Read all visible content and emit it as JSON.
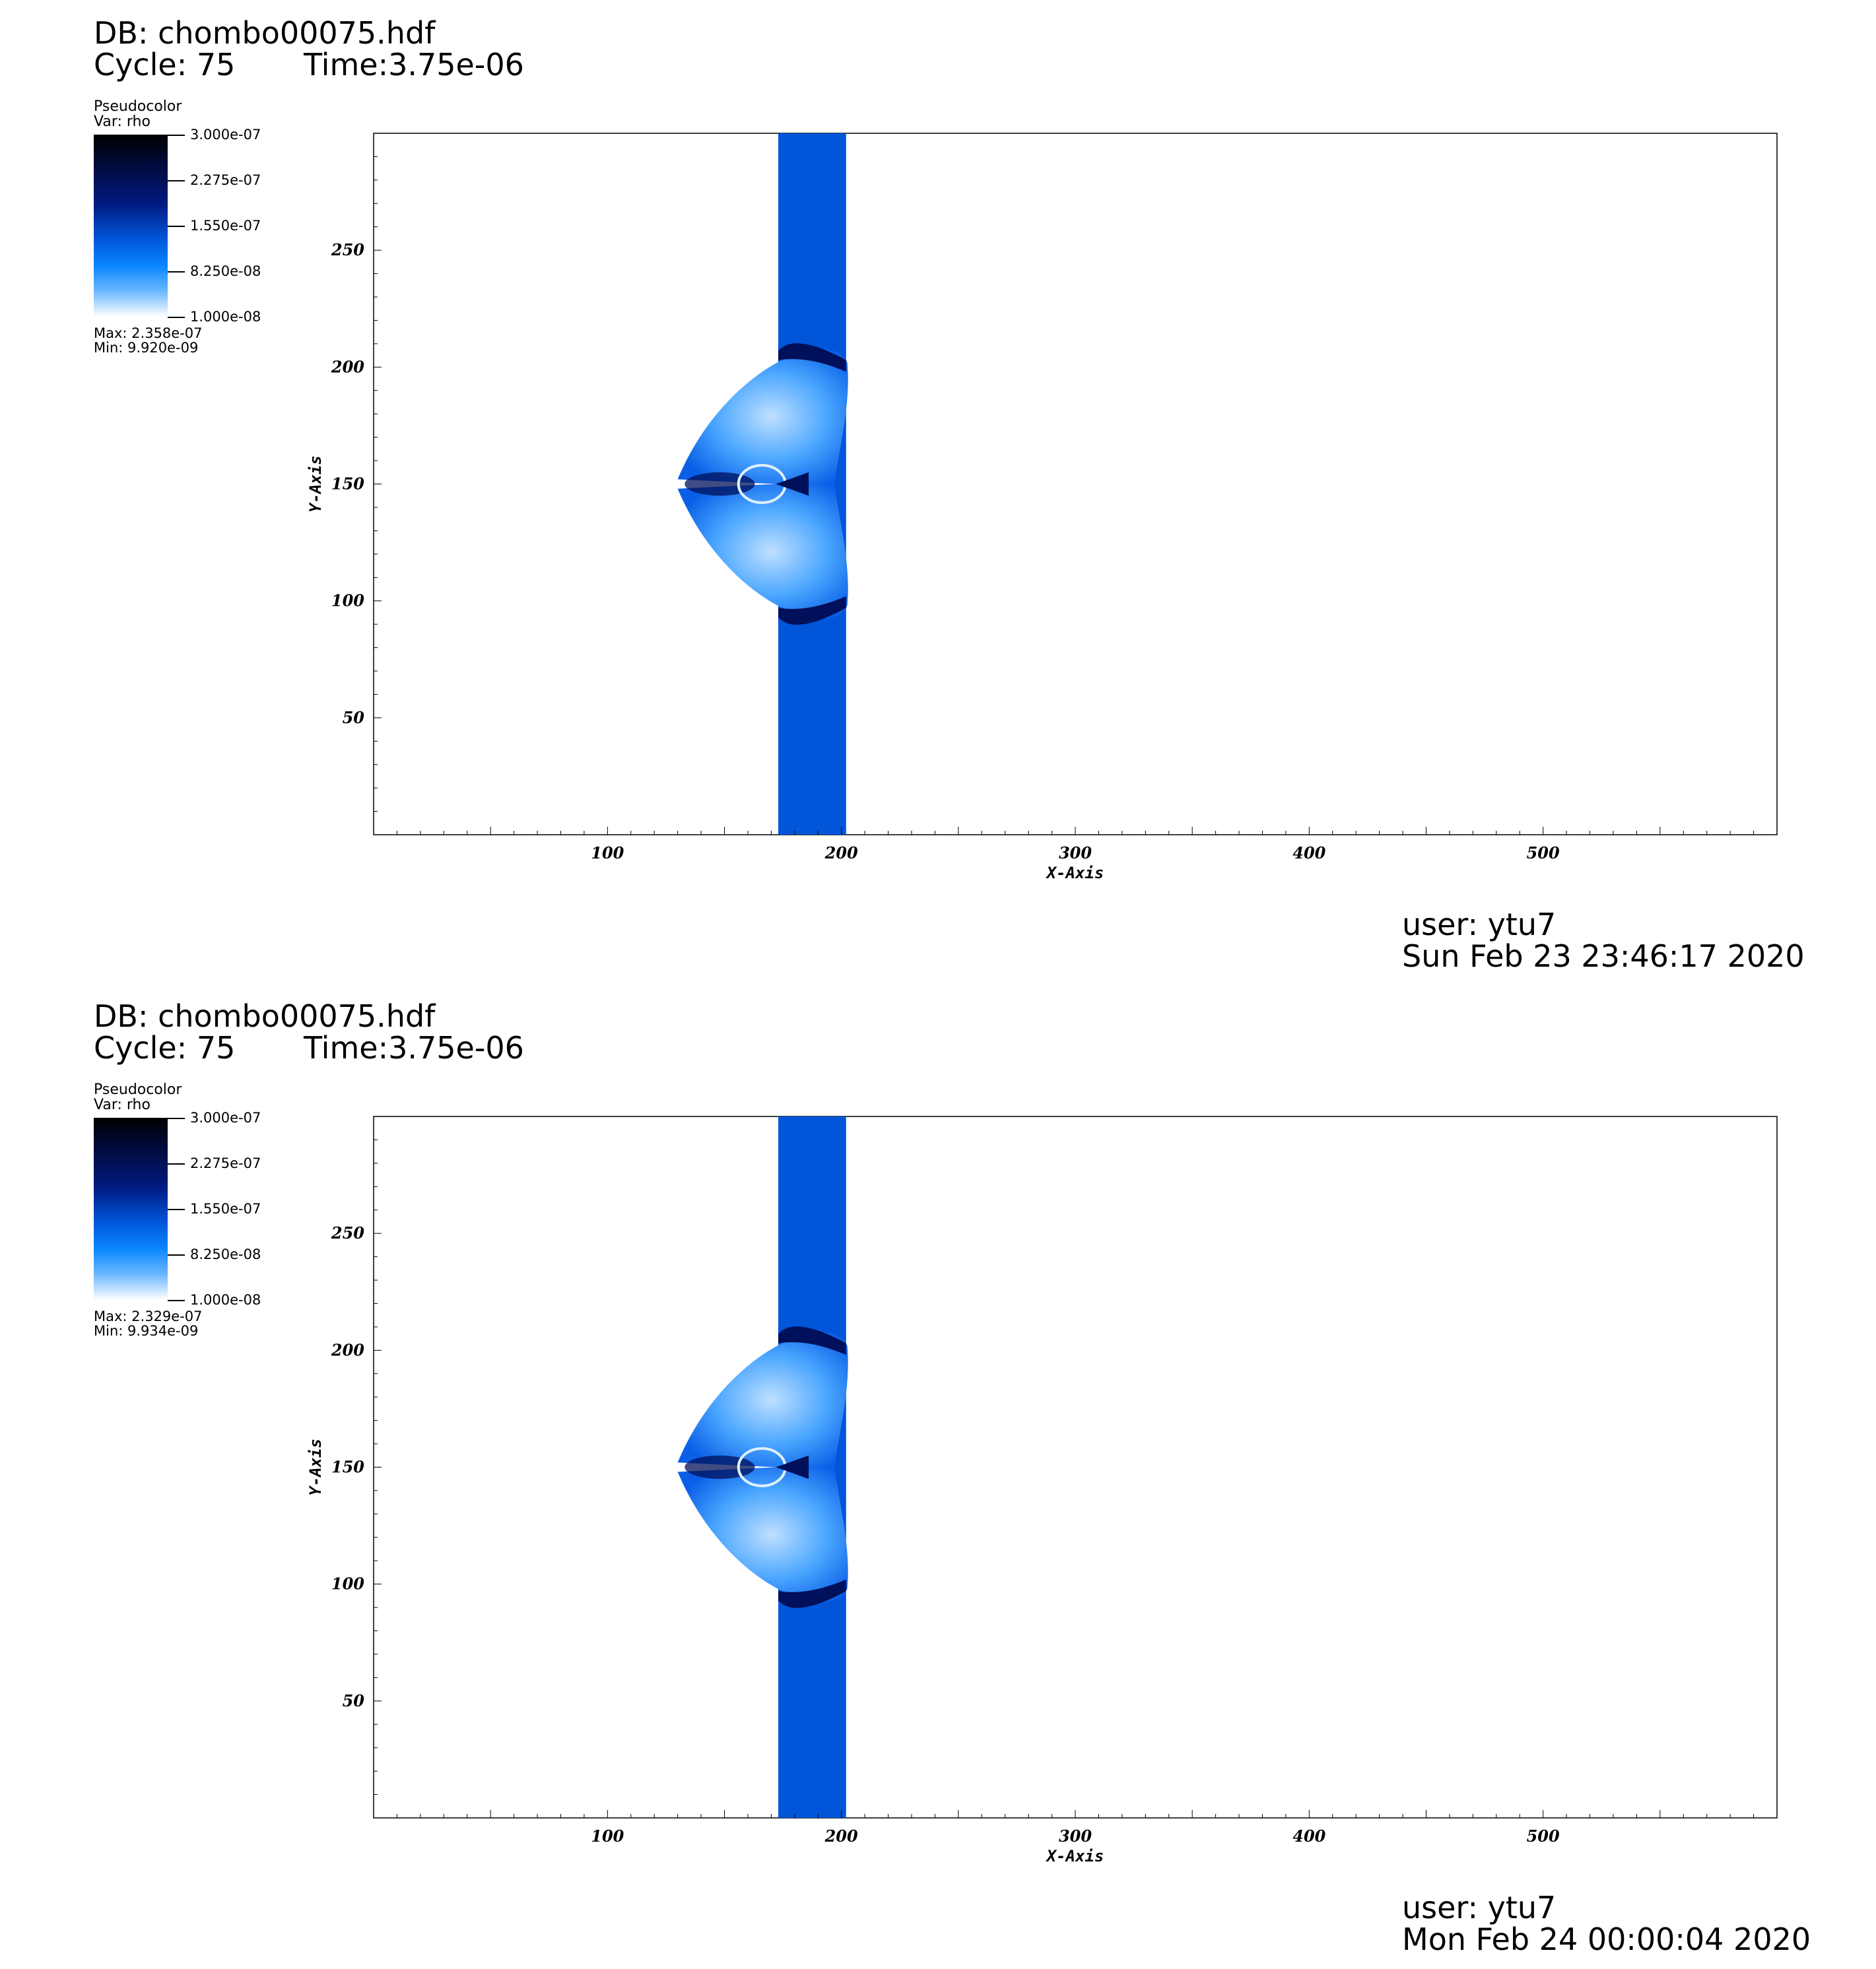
{
  "panels": [
    {
      "db": "DB: chombo00075.hdf",
      "cycle": "Cycle: 75",
      "time": "Time:3.75e-06",
      "legend": {
        "plot_type": "Pseudocolor",
        "var": "Var: rho",
        "labels": [
          "3.000e-07",
          "2.275e-07",
          "1.550e-07",
          "8.250e-08",
          "1.000e-08"
        ],
        "max": "Max:  2.358e-07",
        "min": "Min:  9.920e-09"
      },
      "user": "user: ytu7",
      "date": "Sun Feb 23 23:46:17 2020"
    },
    {
      "db": "DB: chombo00075.hdf",
      "cycle": "Cycle: 75",
      "time": "Time:3.75e-06",
      "legend": {
        "plot_type": "Pseudocolor",
        "var": "Var: rho",
        "labels": [
          "3.000e-07",
          "2.275e-07",
          "1.550e-07",
          "8.250e-08",
          "1.000e-08"
        ],
        "max": "Max:  2.329e-07",
        "min": "Min:  9.934e-09"
      },
      "user": "user: ytu7",
      "date": "Mon Feb 24 00:00:04 2020"
    }
  ],
  "colors": {
    "slab": "#0055d8",
    "light": "#4aa6ff",
    "dark": "#00105a",
    "background": "#ffffff"
  },
  "chart_data": [
    {
      "type": "heatmap",
      "title": "",
      "variable": "rho",
      "xlabel": "X-Axis",
      "ylabel": "Y-Axis",
      "xlim": [
        0,
        600
      ],
      "ylim": [
        0,
        300
      ],
      "x_ticks": [
        100,
        200,
        300,
        400,
        500
      ],
      "y_ticks": [
        50,
        100,
        150,
        200,
        250
      ],
      "colorbar_range": [
        1e-08,
        3e-07
      ],
      "colorbar_ticks": [
        3e-07,
        2.275e-07,
        1.55e-07,
        8.25e-08,
        1e-08
      ],
      "data_max": 2.358e-07,
      "data_min": 9.92e-09,
      "slab_x_range": [
        173,
        202
      ],
      "bow_x_min": 130,
      "bow_y_range": [
        87,
        213
      ]
    },
    {
      "type": "heatmap",
      "title": "",
      "variable": "rho",
      "xlabel": "X-Axis",
      "ylabel": "Y-Axis",
      "xlim": [
        0,
        600
      ],
      "ylim": [
        0,
        300
      ],
      "x_ticks": [
        100,
        200,
        300,
        400,
        500
      ],
      "y_ticks": [
        50,
        100,
        150,
        200,
        250
      ],
      "colorbar_range": [
        1e-08,
        3e-07
      ],
      "colorbar_ticks": [
        3e-07,
        2.275e-07,
        1.55e-07,
        8.25e-08,
        1e-08
      ],
      "data_max": 2.329e-07,
      "data_min": 9.934e-09,
      "slab_x_range": [
        173,
        202
      ],
      "bow_x_min": 130,
      "bow_y_range": [
        87,
        213
      ]
    }
  ]
}
